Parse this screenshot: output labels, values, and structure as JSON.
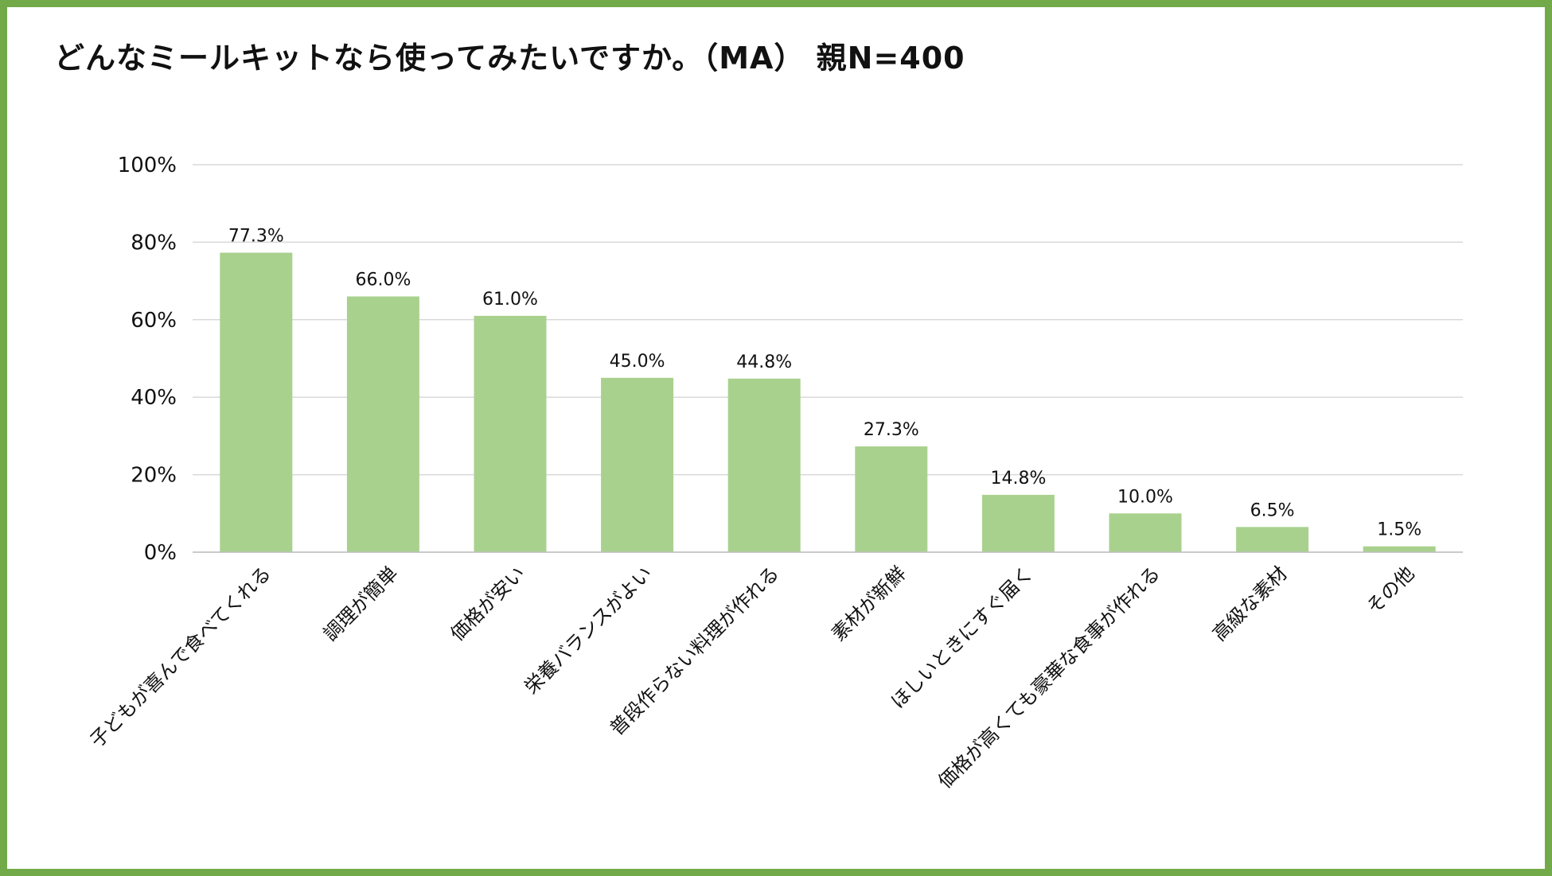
{
  "chart_data": {
    "type": "bar",
    "title": "どんなミールキットなら使ってみたいですか。（MA） 親N=400",
    "xlabel": "",
    "ylabel": "",
    "ylim": [
      0,
      100
    ],
    "yticks": [
      "0%",
      "20%",
      "40%",
      "60%",
      "80%",
      "100%"
    ],
    "grid": true,
    "categories": [
      "子どもが喜んで食べてくれる",
      "調理が簡単",
      "価格が安い",
      "栄養バランスがよい",
      "普段作らない料理が作れる",
      "素材が新鮮",
      "ほしいときにすぐ届く",
      "価格が高くても豪華な食事が作れる",
      "高級な素材",
      "その他"
    ],
    "values": [
      77.3,
      66.0,
      61.0,
      45.0,
      44.8,
      27.3,
      14.8,
      10.0,
      6.5,
      1.5
    ],
    "data_labels": [
      "77.3%",
      "66.0%",
      "61.0%",
      "45.0%",
      "44.8%",
      "27.3%",
      "14.8%",
      "10.0%",
      "6.5%",
      "1.5%"
    ],
    "colors": {
      "bar": "#a9d18e",
      "border": "#72aa4a",
      "grid": "#d9d9d9"
    }
  }
}
